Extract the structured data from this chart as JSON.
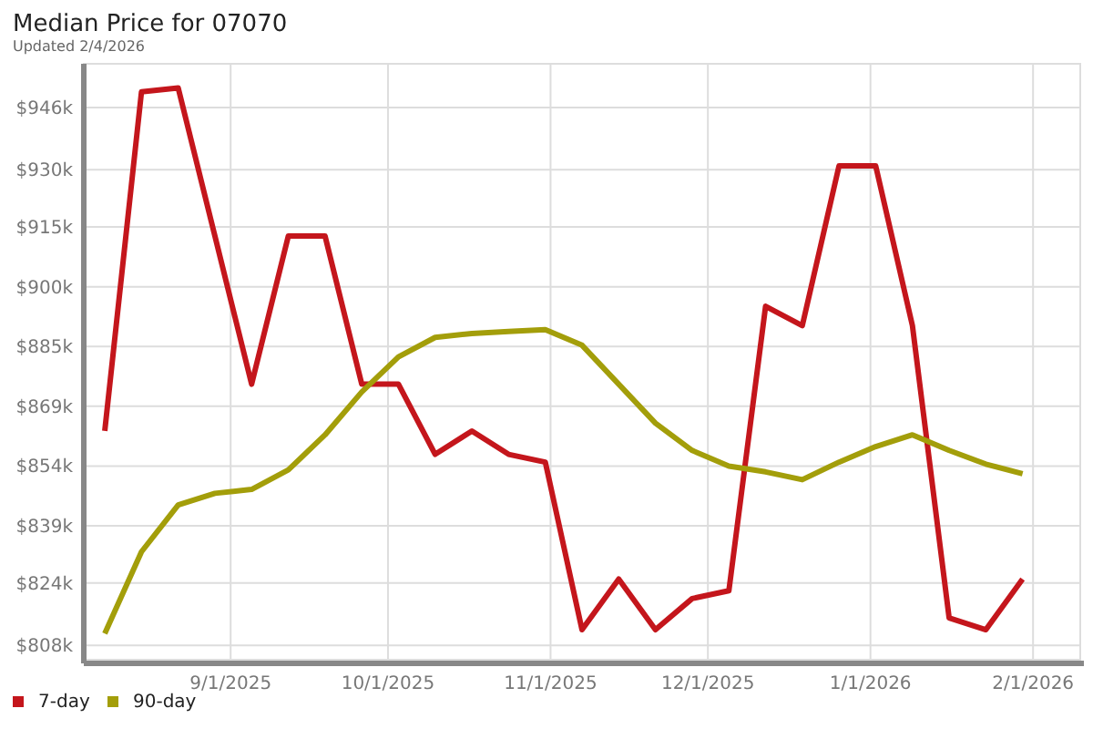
{
  "chart_data": {
    "type": "line",
    "title": "Median Price for 07070",
    "subtitle": "Updated 2/4/2026",
    "x": [
      "2025-08-08",
      "2025-08-15",
      "2025-08-22",
      "2025-08-29",
      "2025-09-05",
      "2025-09-12",
      "2025-09-19",
      "2025-09-26",
      "2025-10-03",
      "2025-10-10",
      "2025-10-17",
      "2025-10-24",
      "2025-10-31",
      "2025-11-07",
      "2025-11-14",
      "2025-11-21",
      "2025-11-28",
      "2025-12-05",
      "2025-12-12",
      "2025-12-19",
      "2025-12-26",
      "2026-01-02",
      "2026-01-09",
      "2026-01-16",
      "2026-01-23",
      "2026-01-30"
    ],
    "series": [
      {
        "name": "7-day",
        "color": "#c4161c",
        "values": [
          863000,
          950000,
          951000,
          913000,
          875000,
          913000,
          913000,
          875000,
          875000,
          857000,
          863000,
          857000,
          855000,
          812000,
          825000,
          812000,
          820000,
          822000,
          895000,
          890000,
          931000,
          931000,
          890000,
          815000,
          812000,
          825000
        ]
      },
      {
        "name": "90-day",
        "color": "#a39e0a",
        "values": [
          811000,
          832000,
          844000,
          847000,
          848000,
          853000,
          862000,
          873000,
          882000,
          887000,
          888000,
          888500,
          889000,
          885000,
          875000,
          865000,
          858000,
          854000,
          852500,
          850500,
          855000,
          859000,
          862000,
          858000,
          854500,
          852000
        ]
      }
    ],
    "xlim": [
      "2025-08-04",
      "2026-02-10"
    ],
    "xticks": [
      {
        "value": "2025-09-01",
        "label": "9/1/2025"
      },
      {
        "value": "2025-10-01",
        "label": "10/1/2025"
      },
      {
        "value": "2025-11-01",
        "label": "11/1/2025"
      },
      {
        "value": "2025-12-01",
        "label": "12/1/2025"
      },
      {
        "value": "2026-01-01",
        "label": "1/1/2026"
      },
      {
        "value": "2026-02-01",
        "label": "2/1/2026"
      }
    ],
    "ylim": [
      804300,
      957200
    ],
    "yticks": [
      {
        "value": 808000,
        "label": "$808k"
      },
      {
        "value": 824000,
        "label": "$824k"
      },
      {
        "value": 838667,
        "label": "$839k"
      },
      {
        "value": 854000,
        "label": "$854k"
      },
      {
        "value": 869333,
        "label": "$869k"
      },
      {
        "value": 884667,
        "label": "$885k"
      },
      {
        "value": 900000,
        "label": "$900k"
      },
      {
        "value": 915333,
        "label": "$915k"
      },
      {
        "value": 930000,
        "label": "$930k"
      },
      {
        "value": 946000,
        "label": "$946k"
      }
    ],
    "grid": true,
    "legend": "bottom left",
    "marker": "none",
    "line_style": "solid"
  }
}
